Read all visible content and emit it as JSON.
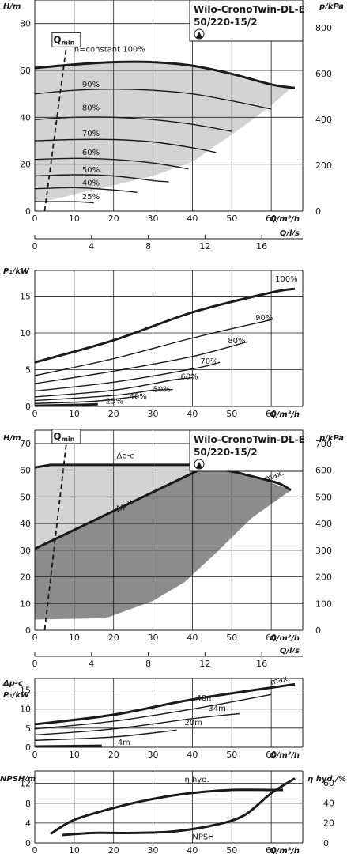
{
  "product": {
    "name": "Wilo-CronoTwin-DL-E",
    "model": "50/220-15/2",
    "logo_text": "▲"
  },
  "chart_data": [
    {
      "id": "head_speed",
      "type": "line",
      "title": "Wilo-CronoTwin-DL-E 50/220-15/2",
      "ylabel_left": "H/m",
      "ylabel_right": "p/kPa",
      "xlabel": "Q/m³/h",
      "xlabel2": "Q/l/s",
      "xlim": [
        0,
        68
      ],
      "ylim": [
        0,
        90
      ],
      "x_ticks": [
        0,
        10,
        20,
        30,
        40,
        50,
        60
      ],
      "y_ticks": [
        0,
        20,
        40,
        60,
        80
      ],
      "y2_ticks": [
        0,
        200,
        400,
        600,
        800
      ],
      "x2_ticks": [
        0,
        4,
        8,
        12,
        16
      ],
      "qmin_label": "Q",
      "qmin_sub": "min",
      "qmin_line": [
        [
          2.5,
          0
        ],
        [
          8,
          70
        ]
      ],
      "shaded_region": [
        [
          0,
          61
        ],
        [
          10,
          62.5
        ],
        [
          20,
          63.5
        ],
        [
          30,
          63.5
        ],
        [
          40,
          62
        ],
        [
          50,
          58.5
        ],
        [
          60,
          54
        ],
        [
          65,
          52.5
        ],
        [
          60,
          45
        ],
        [
          52,
          35
        ],
        [
          46,
          28
        ],
        [
          40,
          21
        ],
        [
          30,
          15
        ],
        [
          20,
          11
        ],
        [
          12,
          8
        ],
        [
          5,
          5
        ],
        [
          0,
          4
        ]
      ],
      "series": [
        {
          "name": "n=constant 100%",
          "label": "n=constant 100%",
          "bold": true,
          "points": [
            [
              0,
              61
            ],
            [
              10,
              62.5
            ],
            [
              20,
              63.5
            ],
            [
              30,
              63.5
            ],
            [
              40,
              62
            ],
            [
              50,
              58.5
            ],
            [
              60,
              54
            ],
            [
              66,
              52.5
            ]
          ]
        },
        {
          "label": "90%",
          "points": [
            [
              0,
              50
            ],
            [
              10,
              51.5
            ],
            [
              20,
              52
            ],
            [
              30,
              51.5
            ],
            [
              40,
              50
            ],
            [
              50,
              47
            ],
            [
              60,
              43.5
            ]
          ]
        },
        {
          "label": "80%",
          "points": [
            [
              0,
              39
            ],
            [
              10,
              40
            ],
            [
              20,
              40
            ],
            [
              30,
              39
            ],
            [
              40,
              37
            ],
            [
              50,
              34
            ]
          ]
        },
        {
          "label": "70%",
          "points": [
            [
              0,
              30
            ],
            [
              10,
              30.5
            ],
            [
              20,
              30.5
            ],
            [
              30,
              29.5
            ],
            [
              40,
              27
            ],
            [
              46,
              25
            ]
          ]
        },
        {
          "label": "60%",
          "points": [
            [
              0,
              22
            ],
            [
              10,
              22.5
            ],
            [
              20,
              22
            ],
            [
              30,
              20.5
            ],
            [
              39,
              18
            ]
          ]
        },
        {
          "label": "50%",
          "points": [
            [
              0,
              15
            ],
            [
              10,
              15.5
            ],
            [
              20,
              15
            ],
            [
              30,
              13
            ],
            [
              34,
              12.5
            ]
          ]
        },
        {
          "label": "40%",
          "points": [
            [
              0,
              9.5
            ],
            [
              10,
              10
            ],
            [
              20,
              9
            ],
            [
              26,
              8
            ]
          ]
        },
        {
          "label": "25%",
          "points": [
            [
              0,
              4
            ],
            [
              10,
              4
            ],
            [
              15,
              3.5
            ]
          ]
        }
      ],
      "curve_label_pos": [
        [
          10,
          68
        ],
        [
          10,
          53
        ],
        [
          10,
          43
        ],
        [
          10,
          32
        ],
        [
          10,
          24
        ],
        [
          10,
          16.5
        ],
        [
          10,
          11
        ],
        [
          10,
          5
        ]
      ]
    },
    {
      "id": "power_speed",
      "type": "line",
      "ylabel": "P₁/kW",
      "xlabel": "Q/m³/h",
      "xlim": [
        0,
        68
      ],
      "ylim": [
        0,
        18.5
      ],
      "x_ticks": [
        0,
        10,
        20,
        30,
        40,
        50,
        60
      ],
      "y_ticks": [
        0,
        5,
        10,
        15
      ],
      "series": [
        {
          "label": "100%",
          "bold": true,
          "points": [
            [
              0,
              6
            ],
            [
              20,
              9
            ],
            [
              40,
              12.8
            ],
            [
              60,
              15.5
            ],
            [
              66,
              16
            ]
          ]
        },
        {
          "label": "90%",
          "points": [
            [
              0,
              4.2
            ],
            [
              20,
              6.5
            ],
            [
              40,
              9.3
            ],
            [
              60,
              11.8
            ]
          ]
        },
        {
          "label": "80%",
          "points": [
            [
              0,
              3.1
            ],
            [
              20,
              4.8
            ],
            [
              40,
              6.8
            ],
            [
              54,
              8.8
            ]
          ]
        },
        {
          "label": "70%",
          "points": [
            [
              0,
              2.1
            ],
            [
              20,
              3.3
            ],
            [
              40,
              5.1
            ],
            [
              47,
              6
            ]
          ]
        },
        {
          "label": "60%",
          "points": [
            [
              0,
              1.3
            ],
            [
              20,
              2.2
            ],
            [
              35,
              3.6
            ],
            [
              40,
              3.9
            ]
          ]
        },
        {
          "label": "50%",
          "points": [
            [
              0,
              0.8
            ],
            [
              20,
              1.5
            ],
            [
              30,
              2.2
            ],
            [
              35,
              2.3
            ]
          ]
        },
        {
          "label": "40%",
          "points": [
            [
              0,
              0.4
            ],
            [
              15,
              0.7
            ],
            [
              25,
              1.3
            ],
            [
              26,
              1.3
            ]
          ]
        },
        {
          "label": "25%",
          "bold": true,
          "points": [
            [
              0,
              0.1
            ],
            [
              10,
              0.2
            ],
            [
              16,
              0.3
            ]
          ]
        }
      ],
      "curve_label_pos": [
        [
          61,
          17
        ],
        [
          56,
          11.7
        ],
        [
          49,
          8.6
        ],
        [
          42,
          5.8
        ],
        [
          37,
          3.7
        ],
        [
          30,
          2
        ],
        [
          24,
          1
        ],
        [
          18,
          0.4
        ]
      ]
    },
    {
      "id": "head_dp",
      "type": "area",
      "title": "Wilo-CronoTwin-DL-E 50/220-15/2",
      "ylabel_left": "H/m",
      "ylabel_right": "p/kPa",
      "xlabel": "Q/m³/h",
      "xlabel2": "Q/l/s",
      "xlim": [
        0,
        68
      ],
      "ylim": [
        0,
        75
      ],
      "x_ticks": [
        0,
        10,
        20,
        30,
        40,
        50,
        60
      ],
      "y_ticks": [
        0,
        10,
        20,
        30,
        40,
        50,
        60,
        70
      ],
      "y2_ticks": [
        0,
        100,
        200,
        300,
        400,
        500,
        600,
        700
      ],
      "x2_ticks": [
        0,
        4,
        8,
        12,
        16
      ],
      "qmin_label": "Q",
      "qmin_sub": "min",
      "qmin_line": [
        [
          2.5,
          0
        ],
        [
          8,
          70
        ]
      ],
      "labels": {
        "dpc": "Δp-c",
        "dpv": "Δp-v",
        "max": "max."
      },
      "dpc_line": [
        [
          0,
          61
        ],
        [
          4,
          62
        ],
        [
          42,
          62
        ],
        [
          44,
          61
        ]
      ],
      "dpv_line": [
        [
          0,
          30.5
        ],
        [
          43,
          61
        ]
      ],
      "max_line": [
        [
          43,
          61
        ],
        [
          50,
          59.5
        ],
        [
          57,
          57
        ],
        [
          62,
          55
        ],
        [
          65,
          52.5
        ]
      ],
      "light_region": [
        [
          0,
          30.5
        ],
        [
          0,
          61
        ],
        [
          4,
          62
        ],
        [
          42,
          62
        ],
        [
          43,
          61
        ]
      ],
      "dark_region": [
        [
          0,
          4
        ],
        [
          18,
          4.5
        ],
        [
          30,
          11
        ],
        [
          38,
          18
        ],
        [
          46,
          29
        ],
        [
          55,
          42
        ],
        [
          65,
          52.5
        ],
        [
          57,
          57
        ],
        [
          50,
          59.5
        ],
        [
          43,
          61
        ],
        [
          0,
          30.5
        ]
      ],
      "label_pos": {
        "dpc": [
          23,
          64.5
        ],
        "dpv": [
          23,
          46
        ],
        "max": [
          61,
          57
        ]
      }
    },
    {
      "id": "power_dp",
      "type": "line",
      "ylabel": "P₁/kW",
      "ylabel_top": "Δp-c",
      "xlabel": "Q/m³/h",
      "xlim": [
        0,
        68
      ],
      "ylim": [
        0,
        18
      ],
      "x_ticks": [
        0,
        10,
        20,
        30,
        40,
        50,
        60
      ],
      "y_ticks": [
        0,
        5,
        10,
        15
      ],
      "series": [
        {
          "label": "max.",
          "bold": true,
          "points": [
            [
              0,
              6
            ],
            [
              20,
              8.5
            ],
            [
              40,
              12.5
            ],
            [
              66,
              16.5
            ]
          ]
        },
        {
          "label": "48m",
          "points": [
            [
              0,
              4.8
            ],
            [
              20,
              6.8
            ],
            [
              40,
              10
            ],
            [
              60,
              13.8
            ]
          ]
        },
        {
          "label": "34m",
          "points": [
            [
              0,
              3.2
            ],
            [
              20,
              4.8
            ],
            [
              40,
              7.5
            ],
            [
              52,
              8.8
            ]
          ]
        },
        {
          "label": "20m",
          "points": [
            [
              0,
              1.8
            ],
            [
              20,
              2.7
            ],
            [
              36,
              4.5
            ]
          ]
        },
        {
          "label": "4m",
          "bold": true,
          "points": [
            [
              0,
              0.2
            ],
            [
              17,
              0.4
            ]
          ]
        }
      ],
      "curve_label_pos": [
        [
          60,
          16.3
        ],
        [
          41,
          12.2
        ],
        [
          44,
          9.5
        ],
        [
          38,
          5.8
        ],
        [
          21,
          0.6
        ]
      ]
    },
    {
      "id": "npsh_eff",
      "type": "line",
      "ylabel_left": "NPSH/m",
      "ylabel_right": "η hyd./%",
      "xlabel": "Q/m³/h",
      "xlim": [
        0,
        68
      ],
      "ylim": [
        0,
        14.5
      ],
      "x_ticks": [
        0,
        10,
        20,
        30,
        40,
        50,
        60
      ],
      "y_ticks": [
        0,
        4,
        8,
        12
      ],
      "y2_ticks": [
        0,
        20,
        40,
        60
      ],
      "series": [
        {
          "label": "η hyd.",
          "axis": "right",
          "points": [
            [
              4,
              9
            ],
            [
              10,
              23
            ],
            [
              20,
              35
            ],
            [
              30,
              44
            ],
            [
              40,
              50
            ],
            [
              50,
              53
            ],
            [
              60,
              53
            ],
            [
              63,
              53
            ]
          ]
        },
        {
          "label": "NPSH",
          "axis": "left",
          "points": [
            [
              7,
              1.6
            ],
            [
              15,
              2
            ],
            [
              25,
              2
            ],
            [
              35,
              2.3
            ],
            [
              45,
              3.5
            ],
            [
              53,
              5.5
            ],
            [
              60,
              10
            ],
            [
              66,
              13
            ]
          ]
        }
      ],
      "curve_label_pos": [
        [
          38,
          12.3
        ],
        [
          40,
          0.7
        ]
      ]
    }
  ]
}
